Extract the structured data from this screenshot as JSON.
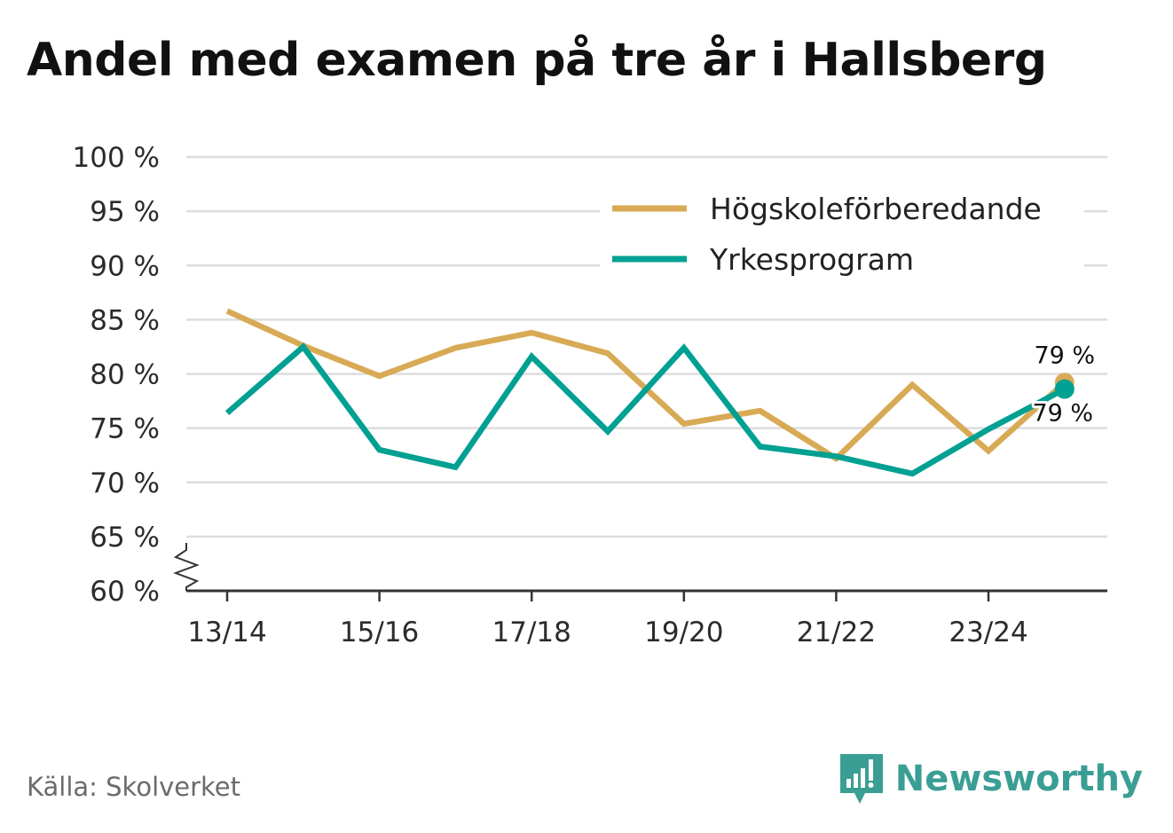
{
  "title": "Andel med examen på tre år i Hallsberg",
  "source": "Källa: Skolverket",
  "brand": "Newsworthy",
  "colors": {
    "hogskole": "#d8aa55",
    "yrkes": "#00a092",
    "grid": "#dddddd",
    "axis": "#333333"
  },
  "chart_data": {
    "type": "line",
    "title": "Andel med examen på tre år i Hallsberg",
    "x": [
      "13/14",
      "14/15",
      "15/16",
      "16/17",
      "17/18",
      "18/19",
      "19/20",
      "20/21",
      "21/22",
      "22/23",
      "23/24",
      "24/25"
    ],
    "x_tick_labels": [
      "13/14",
      "15/16",
      "17/18",
      "19/20",
      "21/22",
      "23/24"
    ],
    "y_tick_labels": [
      "100 %",
      "95 %",
      "90 %",
      "85 %",
      "80 %",
      "75 %",
      "70 %",
      "65 %",
      "60 %"
    ],
    "ylim": [
      60,
      100
    ],
    "y_axis_break": true,
    "series": [
      {
        "name": "Högskoleförberedande",
        "color": "#d8aa55",
        "values": [
          85.8,
          82.6,
          79.8,
          82.4,
          83.8,
          81.9,
          75.4,
          76.6,
          72.2,
          79.0,
          72.9,
          79.2
        ]
      },
      {
        "name": "Yrkesprogram",
        "color": "#00a092",
        "values": [
          76.4,
          82.5,
          73.0,
          71.4,
          81.6,
          74.7,
          82.4,
          73.3,
          72.4,
          70.8,
          74.9,
          78.6
        ]
      }
    ],
    "end_labels": [
      "79 %",
      "79 %"
    ],
    "legend": [
      "Högskoleförberedande",
      "Yrkesprogram"
    ],
    "legend_position": "top-right"
  }
}
